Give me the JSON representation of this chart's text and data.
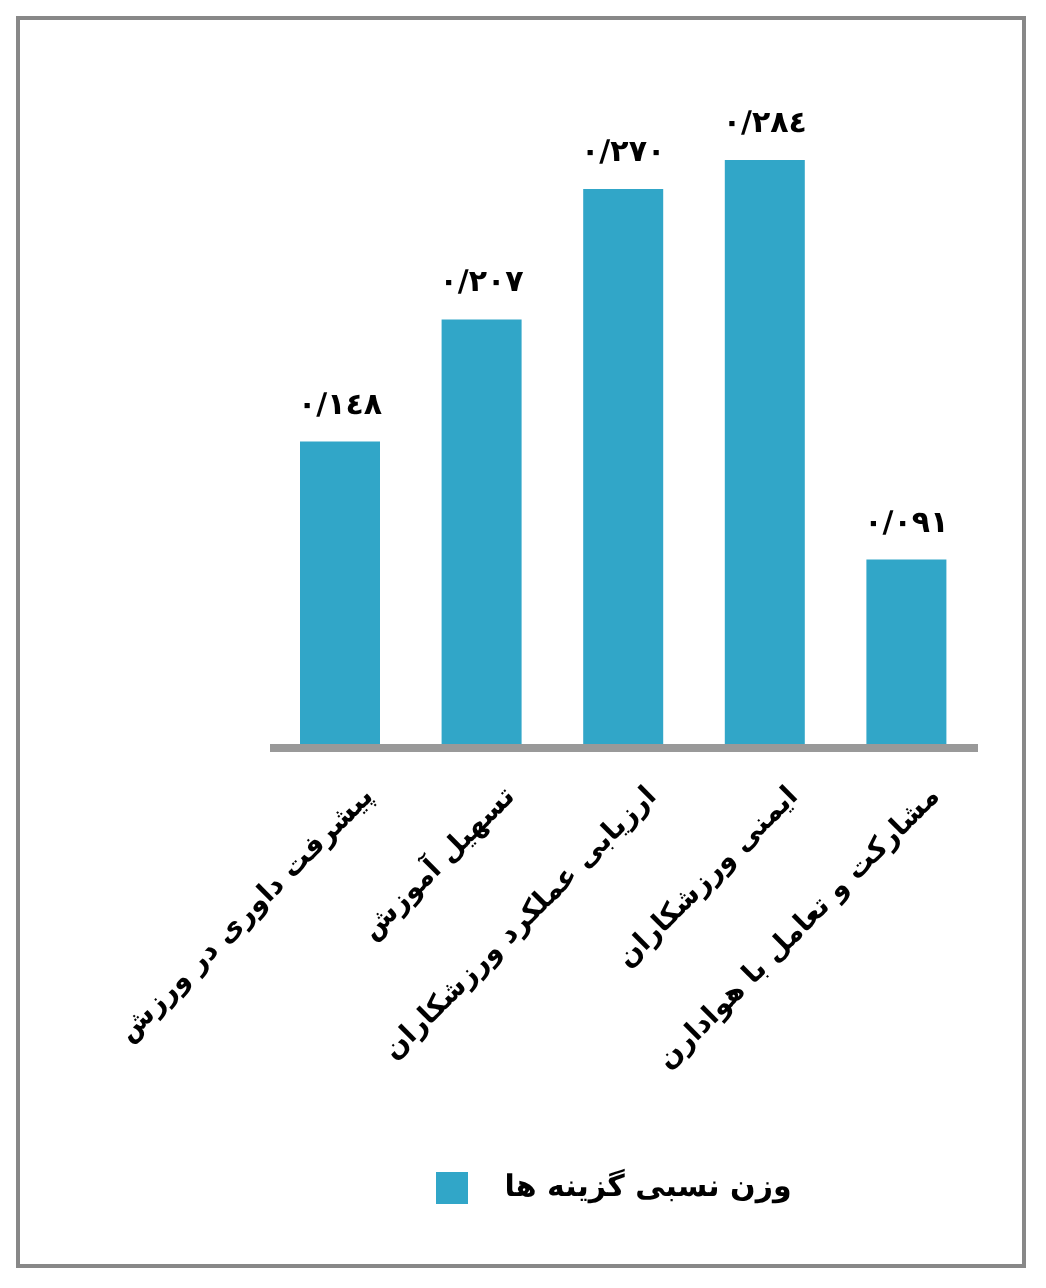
{
  "chart_data": {
    "type": "bar",
    "categories": [
      "پیشرفت داوری در ورزش",
      "تسهیل آموزش",
      "ارزیابی عملکرد ورزشکاران",
      "ایمنی ورزشکاران",
      "مشارکت و تعامل با هوادارن"
    ],
    "series": [
      {
        "name": "وزن نسبی گزینه ها",
        "color": "#31a6c8",
        "values": [
          0.148,
          0.207,
          0.27,
          0.284,
          0.091
        ],
        "value_labels": [
          "٠/١٤٨",
          "٠/٢٠٧",
          "٠/٢٧٠",
          "٠/٢٨٤",
          "٠/٠٩١"
        ]
      }
    ],
    "legend": "bottom",
    "grid": false
  }
}
